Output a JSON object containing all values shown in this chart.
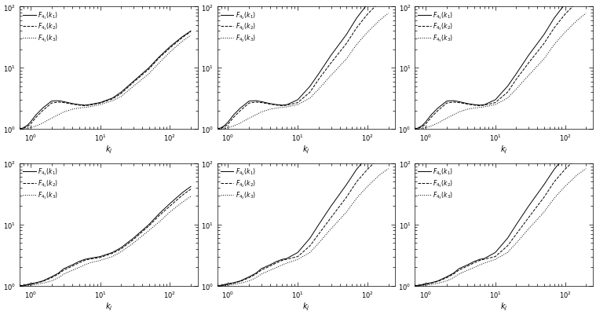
{
  "rows": 2,
  "cols": 3,
  "xlabel": "$k_j$",
  "ylim": [
    1.0,
    100.0
  ],
  "xlim": [
    0.7,
    250
  ],
  "line_styles": [
    "-",
    "--",
    ":"
  ],
  "line_color": "black",
  "background": "white",
  "legend_labels": [
    [
      [
        "$F_{4_1}(k_1)$",
        "$F_{4_1}(k_2)$",
        "$F_{4_1}(k_3)$"
      ],
      [
        "$F_{4_2}(k_1)$",
        "$F_{4_2}(k_2)$",
        "$F_{4_2}(k_3)$"
      ],
      [
        "$F_{4_3}(k_1)$",
        "$F_{4_3}(k_2)$",
        "$F_{4_3}(k_3)$"
      ]
    ],
    [
      [
        "$F_{4_1}(k_1)$",
        "$F_{4_1}(k_2)$",
        "$F_{4_1}(k_3)$"
      ],
      [
        "$F_{4_2}(k_1)$",
        "$F_{4_2}(k_2)$",
        "$F_{4_2}(k_3)$"
      ],
      [
        "$F_{4_3}(k_1)$",
        "$F_{4_3}(k_2)$",
        "$F_{4_3}(k_3)$"
      ]
    ]
  ],
  "x_data": [
    0.7,
    0.8,
    0.9,
    1.0,
    1.2,
    1.5,
    2.0,
    2.5,
    3.0,
    4.0,
    5.0,
    6.0,
    7.0,
    10.0,
    15.0,
    20.0,
    30.0,
    50.0,
    70.0,
    100.0,
    150.0,
    200.0
  ],
  "row_data": [
    [
      [
        [
          1.0,
          1.05,
          1.15,
          1.3,
          1.7,
          2.2,
          2.85,
          2.9,
          2.8,
          2.6,
          2.5,
          2.45,
          2.5,
          2.7,
          3.2,
          4.0,
          6.0,
          10.0,
          15.0,
          22.0,
          32.0,
          40.0
        ],
        [
          1.0,
          1.03,
          1.1,
          1.2,
          1.55,
          2.0,
          2.65,
          2.75,
          2.7,
          2.55,
          2.45,
          2.4,
          2.45,
          2.65,
          3.1,
          3.8,
          5.8,
          9.5,
          14.5,
          21.0,
          31.0,
          39.0
        ],
        [
          1.0,
          1.0,
          1.02,
          1.05,
          1.12,
          1.25,
          1.5,
          1.7,
          1.9,
          2.1,
          2.2,
          2.25,
          2.3,
          2.5,
          2.9,
          3.4,
          5.0,
          8.0,
          12.0,
          18.0,
          27.0,
          34.0
        ]
      ],
      [
        [
          1.0,
          1.05,
          1.15,
          1.3,
          1.7,
          2.2,
          2.85,
          2.9,
          2.8,
          2.6,
          2.5,
          2.45,
          2.5,
          3.0,
          5.0,
          8.0,
          16.0,
          35.0,
          65.0,
          110.0,
          180.0,
          230.0
        ],
        [
          1.0,
          1.03,
          1.1,
          1.2,
          1.55,
          2.0,
          2.65,
          2.75,
          2.7,
          2.55,
          2.45,
          2.4,
          2.45,
          2.7,
          4.0,
          6.5,
          12.0,
          25.0,
          45.0,
          75.0,
          120.0,
          155.0
        ],
        [
          1.0,
          1.0,
          1.02,
          1.05,
          1.12,
          1.25,
          1.5,
          1.7,
          1.9,
          2.1,
          2.2,
          2.25,
          2.3,
          2.5,
          3.2,
          4.5,
          7.5,
          14.0,
          24.0,
          38.0,
          60.0,
          78.0
        ]
      ],
      [
        [
          1.0,
          1.05,
          1.15,
          1.3,
          1.7,
          2.2,
          2.85,
          2.9,
          2.8,
          2.6,
          2.5,
          2.45,
          2.5,
          3.0,
          5.0,
          8.0,
          16.0,
          35.0,
          65.0,
          110.0,
          180.0,
          230.0
        ],
        [
          1.0,
          1.03,
          1.1,
          1.2,
          1.55,
          2.0,
          2.65,
          2.75,
          2.7,
          2.55,
          2.45,
          2.4,
          2.45,
          2.7,
          4.0,
          6.5,
          12.0,
          25.0,
          45.0,
          75.0,
          120.0,
          155.0
        ],
        [
          1.0,
          1.0,
          1.02,
          1.05,
          1.12,
          1.25,
          1.5,
          1.7,
          1.9,
          2.1,
          2.2,
          2.25,
          2.3,
          2.5,
          3.2,
          4.5,
          7.5,
          14.0,
          24.0,
          38.0,
          60.0,
          78.0
        ]
      ]
    ],
    [
      [
        [
          1.0,
          1.02,
          1.05,
          1.08,
          1.12,
          1.2,
          1.4,
          1.6,
          1.9,
          2.2,
          2.5,
          2.7,
          2.8,
          3.0,
          3.5,
          4.2,
          6.0,
          10.0,
          15.0,
          22.0,
          33.0,
          42.0
        ],
        [
          1.0,
          1.01,
          1.03,
          1.06,
          1.1,
          1.18,
          1.35,
          1.55,
          1.8,
          2.1,
          2.38,
          2.6,
          2.72,
          2.9,
          3.4,
          4.0,
          5.7,
          9.5,
          14.0,
          20.0,
          30.0,
          38.0
        ],
        [
          1.0,
          1.0,
          1.01,
          1.02,
          1.05,
          1.1,
          1.2,
          1.35,
          1.55,
          1.8,
          2.0,
          2.2,
          2.35,
          2.6,
          3.0,
          3.6,
          5.0,
          8.0,
          11.0,
          16.0,
          23.0,
          29.0
        ]
      ],
      [
        [
          1.0,
          1.02,
          1.05,
          1.08,
          1.12,
          1.2,
          1.4,
          1.6,
          1.9,
          2.2,
          2.5,
          2.7,
          2.8,
          3.5,
          6.0,
          10.0,
          20.0,
          45.0,
          80.0,
          130.0,
          200.0,
          260.0
        ],
        [
          1.0,
          1.01,
          1.03,
          1.06,
          1.1,
          1.18,
          1.35,
          1.55,
          1.8,
          2.1,
          2.38,
          2.6,
          2.72,
          3.0,
          4.5,
          7.0,
          13.0,
          28.0,
          50.0,
          80.0,
          125.0,
          160.0
        ],
        [
          1.0,
          1.0,
          1.01,
          1.02,
          1.05,
          1.1,
          1.2,
          1.35,
          1.55,
          1.8,
          2.0,
          2.2,
          2.35,
          2.7,
          3.5,
          5.0,
          8.5,
          16.0,
          27.0,
          42.0,
          65.0,
          82.0
        ]
      ],
      [
        [
          1.0,
          1.02,
          1.05,
          1.08,
          1.12,
          1.2,
          1.4,
          1.6,
          1.9,
          2.2,
          2.5,
          2.7,
          2.8,
          3.5,
          6.0,
          10.0,
          20.0,
          45.0,
          80.0,
          130.0,
          200.0,
          260.0
        ],
        [
          1.0,
          1.01,
          1.03,
          1.06,
          1.1,
          1.18,
          1.35,
          1.55,
          1.8,
          2.1,
          2.38,
          2.6,
          2.72,
          3.0,
          4.5,
          7.0,
          13.0,
          28.0,
          50.0,
          80.0,
          125.0,
          160.0
        ],
        [
          1.0,
          1.0,
          1.01,
          1.02,
          1.05,
          1.1,
          1.2,
          1.35,
          1.55,
          1.8,
          2.0,
          2.2,
          2.35,
          2.7,
          3.5,
          5.0,
          8.5,
          16.0,
          27.0,
          42.0,
          65.0,
          82.0
        ]
      ]
    ]
  ]
}
